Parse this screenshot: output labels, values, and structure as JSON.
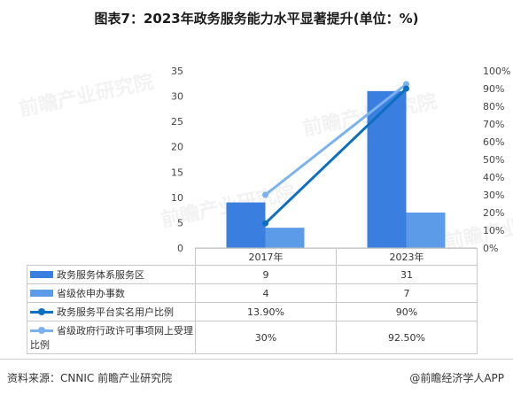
{
  "title": "图表7：2023年政务服务能力水平显著提升(单位：%)",
  "watermark": "前瞻产业研究院",
  "source": "资料来源：CNNIC 前瞻产业研究院",
  "credit": "@前瞻经济学人APP",
  "colors": {
    "bar1": "#3a7fe0",
    "bar2": "#5c9be8",
    "line1": "#0b6fc2",
    "line2": "#7ab3ee"
  },
  "chart_data": {
    "type": "bar+line",
    "categories": [
      "2017年",
      "2023年"
    ],
    "left_axis": {
      "min": 0,
      "max": 35,
      "ticks": [
        "0",
        "5",
        "10",
        "15",
        "20",
        "25",
        "30",
        "35"
      ]
    },
    "right_axis": {
      "min": 0,
      "max": 100,
      "ticks": [
        "0%",
        "10%",
        "20%",
        "30%",
        "40%",
        "50%",
        "60%",
        "70%",
        "80%",
        "90%",
        "100%"
      ]
    },
    "series": [
      {
        "name": "政务服务体系服务区",
        "kind": "bar",
        "axis": "left",
        "values": [
          9,
          31
        ],
        "labels": [
          "9",
          "31"
        ]
      },
      {
        "name": "省级依申办事数",
        "kind": "bar",
        "axis": "left",
        "values": [
          4,
          7
        ],
        "labels": [
          "4",
          "7"
        ]
      },
      {
        "name": "政务服务平台实名用户比例",
        "kind": "line",
        "axis": "right",
        "values": [
          13.9,
          90
        ],
        "labels": [
          "13.90%",
          "90%"
        ]
      },
      {
        "name": "省级政府行政许可事项网上受理比例",
        "kind": "line",
        "axis": "right",
        "values": [
          30,
          92.5
        ],
        "labels": [
          "30%",
          "92.50%"
        ]
      }
    ]
  }
}
